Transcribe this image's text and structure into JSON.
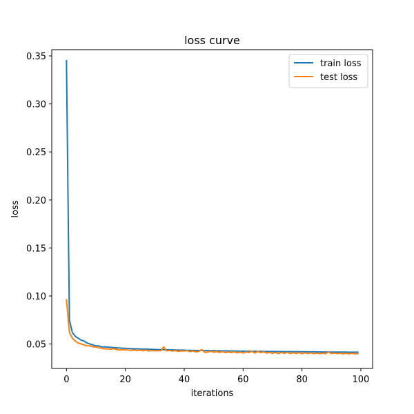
{
  "chart_data": {
    "type": "line",
    "title": "loss curve",
    "xlabel": "iterations",
    "ylabel": "loss",
    "xlim": [
      -5,
      104
    ],
    "ylim": [
      0.0245,
      0.3565
    ],
    "xticks": [
      0,
      20,
      40,
      60,
      80,
      100
    ],
    "yticks": [
      0.05,
      0.1,
      0.15,
      0.2,
      0.25,
      0.3,
      0.35
    ],
    "xtick_labels": [
      "0",
      "20",
      "40",
      "60",
      "80",
      "100"
    ],
    "ytick_labels": [
      "0.05",
      "0.10",
      "0.15",
      "0.20",
      "0.25",
      "0.30",
      "0.35"
    ],
    "grid": false,
    "legend_position": "top-right",
    "series": [
      {
        "name": "train loss",
        "color": "#1f77b4",
        "x": [
          0,
          1,
          2,
          3,
          4,
          5,
          6,
          7,
          8,
          9,
          10,
          11,
          12,
          13,
          14,
          15,
          16,
          17,
          18,
          19,
          20,
          21,
          22,
          23,
          24,
          25,
          26,
          27,
          28,
          29,
          30,
          31,
          32,
          33,
          34,
          35,
          36,
          37,
          38,
          39,
          40,
          41,
          42,
          43,
          44,
          45,
          46,
          47,
          48,
          49,
          50,
          51,
          52,
          53,
          54,
          55,
          56,
          57,
          58,
          59,
          60,
          61,
          62,
          63,
          64,
          65,
          66,
          67,
          68,
          69,
          70,
          71,
          72,
          73,
          74,
          75,
          76,
          77,
          78,
          79,
          80,
          81,
          82,
          83,
          84,
          85,
          86,
          87,
          88,
          89,
          90,
          91,
          92,
          93,
          94,
          95,
          96,
          97,
          98,
          99
        ],
        "y": [
          0.345,
          0.075,
          0.062,
          0.058,
          0.056,
          0.054,
          0.053,
          0.051,
          0.05,
          0.049,
          0.048,
          0.048,
          0.047,
          0.047,
          0.0468,
          0.0465,
          0.0462,
          0.046,
          0.0458,
          0.0456,
          0.0455,
          0.0453,
          0.0452,
          0.045,
          0.045,
          0.0448,
          0.0447,
          0.0446,
          0.0445,
          0.0444,
          0.0443,
          0.0442,
          0.0441,
          0.044,
          0.044,
          0.0439,
          0.0438,
          0.0437,
          0.0436,
          0.0436,
          0.0435,
          0.0434,
          0.0434,
          0.0433,
          0.0433,
          0.0432,
          0.0432,
          0.0431,
          0.0431,
          0.043,
          0.043,
          0.0429,
          0.0429,
          0.0428,
          0.0428,
          0.0427,
          0.0427,
          0.0426,
          0.0426,
          0.0425,
          0.0425,
          0.0425,
          0.0424,
          0.0424,
          0.0424,
          0.0423,
          0.0423,
          0.0423,
          0.0422,
          0.0422,
          0.0422,
          0.0421,
          0.0421,
          0.0421,
          0.042,
          0.042,
          0.042,
          0.042,
          0.0419,
          0.0419,
          0.0419,
          0.0419,
          0.0418,
          0.0418,
          0.0418,
          0.0418,
          0.0417,
          0.0417,
          0.0417,
          0.0417,
          0.0416,
          0.0416,
          0.0416,
          0.0416,
          0.0416,
          0.0415,
          0.0415,
          0.0415,
          0.0415,
          0.0415
        ]
      },
      {
        "name": "test loss",
        "color": "#ff7f0e",
        "x": [
          0,
          1,
          2,
          3,
          4,
          5,
          6,
          7,
          8,
          9,
          10,
          11,
          12,
          13,
          14,
          15,
          16,
          17,
          18,
          19,
          20,
          21,
          22,
          23,
          24,
          25,
          26,
          27,
          28,
          29,
          30,
          31,
          32,
          33,
          34,
          35,
          36,
          37,
          38,
          39,
          40,
          41,
          42,
          43,
          44,
          45,
          46,
          47,
          48,
          49,
          50,
          51,
          52,
          53,
          54,
          55,
          56,
          57,
          58,
          59,
          60,
          61,
          62,
          63,
          64,
          65,
          66,
          67,
          68,
          69,
          70,
          71,
          72,
          73,
          74,
          75,
          76,
          77,
          78,
          79,
          80,
          81,
          82,
          83,
          84,
          85,
          86,
          87,
          88,
          89,
          90,
          91,
          92,
          93,
          94,
          95,
          96,
          97,
          98,
          99
        ],
        "y": [
          0.096,
          0.062,
          0.056,
          0.053,
          0.051,
          0.05,
          0.049,
          0.048,
          0.048,
          0.047,
          0.047,
          0.046,
          0.0455,
          0.045,
          0.0448,
          0.0445,
          0.0452,
          0.0443,
          0.0436,
          0.0442,
          0.0438,
          0.0436,
          0.0434,
          0.0437,
          0.0431,
          0.0436,
          0.0429,
          0.0437,
          0.0427,
          0.0432,
          0.0429,
          0.0431,
          0.0429,
          0.047,
          0.0428,
          0.0433,
          0.0426,
          0.0432,
          0.0423,
          0.0429,
          0.0426,
          0.0431,
          0.042,
          0.0428,
          0.0417,
          0.0423,
          0.0442,
          0.0412,
          0.0416,
          0.0424,
          0.0414,
          0.0422,
          0.0412,
          0.0421,
          0.041,
          0.0417,
          0.041,
          0.0419,
          0.0407,
          0.0416,
          0.0405,
          0.0417,
          0.0411,
          0.0424,
          0.0405,
          0.0423,
          0.0409,
          0.0419,
          0.0405,
          0.0412,
          0.0403,
          0.0411,
          0.04,
          0.0412,
          0.0403,
          0.0413,
          0.04,
          0.0409,
          0.0401,
          0.041,
          0.0398,
          0.0409,
          0.04,
          0.0408,
          0.0398,
          0.0406,
          0.0398,
          0.0405,
          0.0398,
          0.0418,
          0.0399,
          0.0406,
          0.0399,
          0.0405,
          0.0397,
          0.0404,
          0.0397,
          0.0403,
          0.0397,
          0.0399
        ]
      }
    ]
  }
}
